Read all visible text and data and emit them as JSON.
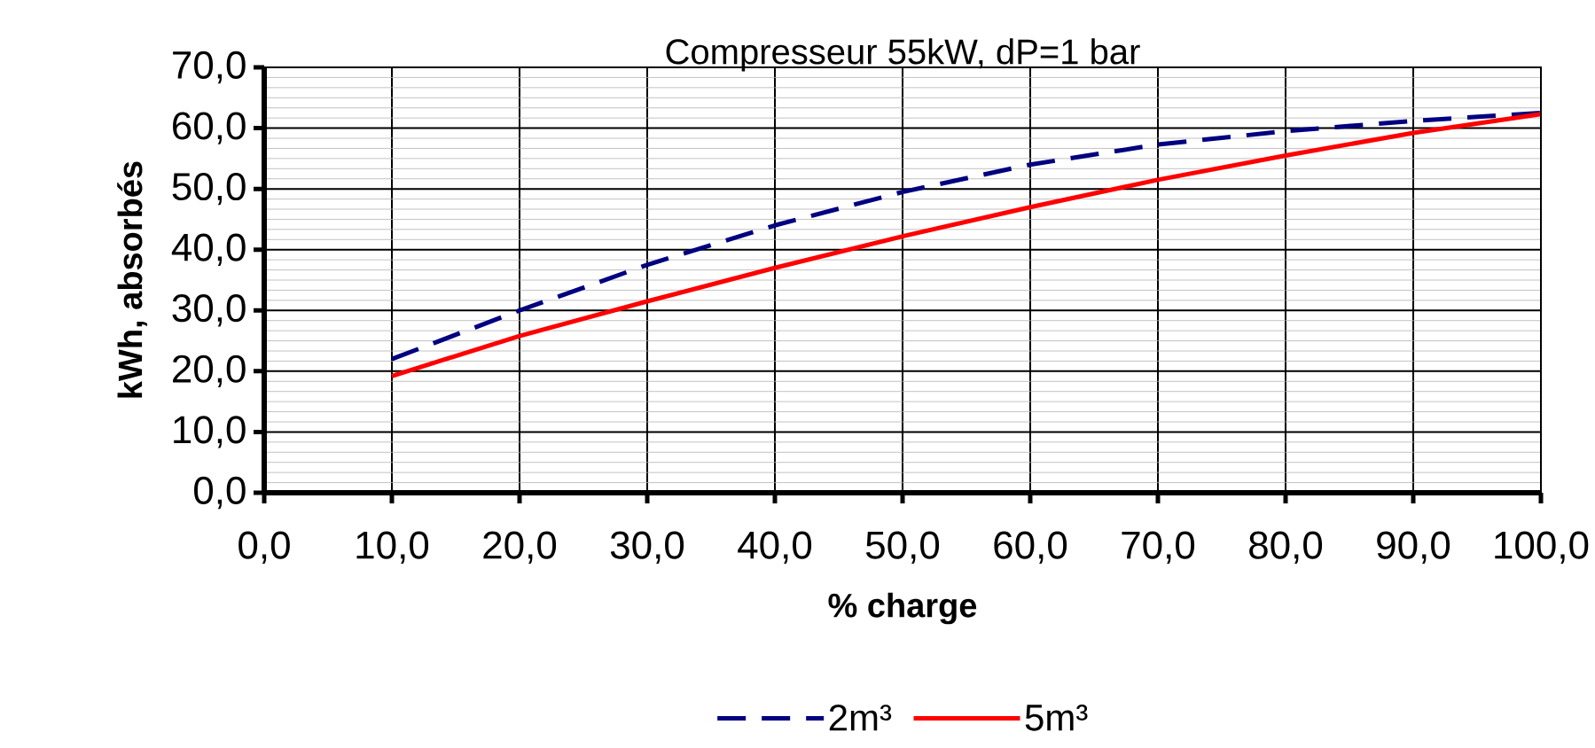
{
  "chart_data": {
    "type": "line",
    "title": "Compresseur 55kW, dP=1 bar",
    "xlabel": "% charge",
    "ylabel": "kWh, absorbés",
    "x": [
      10,
      20,
      30,
      40,
      50,
      60,
      70,
      80,
      90,
      100
    ],
    "series": [
      {
        "name": "2m³",
        "color": "#000080",
        "line_style": "dashed",
        "values": [
          22,
          30,
          37.5,
          44,
          49.5,
          54,
          57.3,
          59.5,
          61.2,
          62.5
        ]
      },
      {
        "name": "5m³",
        "color": "#ff0000",
        "line_style": "solid",
        "values": [
          19.2,
          25.8,
          31.5,
          37,
          42.2,
          47,
          51.5,
          55.5,
          59.2,
          62.3
        ]
      }
    ],
    "xlim": [
      0,
      100
    ],
    "ylim": [
      0,
      70
    ],
    "xticks": [
      {
        "value": 0,
        "label": "0,0"
      },
      {
        "value": 10,
        "label": "10,0"
      },
      {
        "value": 20,
        "label": "20,0"
      },
      {
        "value": 30,
        "label": "30,0"
      },
      {
        "value": 40,
        "label": "40,0"
      },
      {
        "value": 50,
        "label": "50,0"
      },
      {
        "value": 60,
        "label": "60,0"
      },
      {
        "value": 70,
        "label": "70,0"
      },
      {
        "value": 80,
        "label": "80,0"
      },
      {
        "value": 90,
        "label": "90,0"
      },
      {
        "value": 100,
        "label": "100,0"
      }
    ],
    "yticks": [
      {
        "value": 0,
        "label": "0,0"
      },
      {
        "value": 10,
        "label": "10,0"
      },
      {
        "value": 20,
        "label": "20,0"
      },
      {
        "value": 30,
        "label": "30,0"
      },
      {
        "value": 40,
        "label": "40,0"
      },
      {
        "value": 50,
        "label": "50,0"
      },
      {
        "value": 60,
        "label": "60,0"
      },
      {
        "value": 70,
        "label": "70,0"
      }
    ],
    "grid": true,
    "legend": "bottom",
    "marker": "none"
  }
}
